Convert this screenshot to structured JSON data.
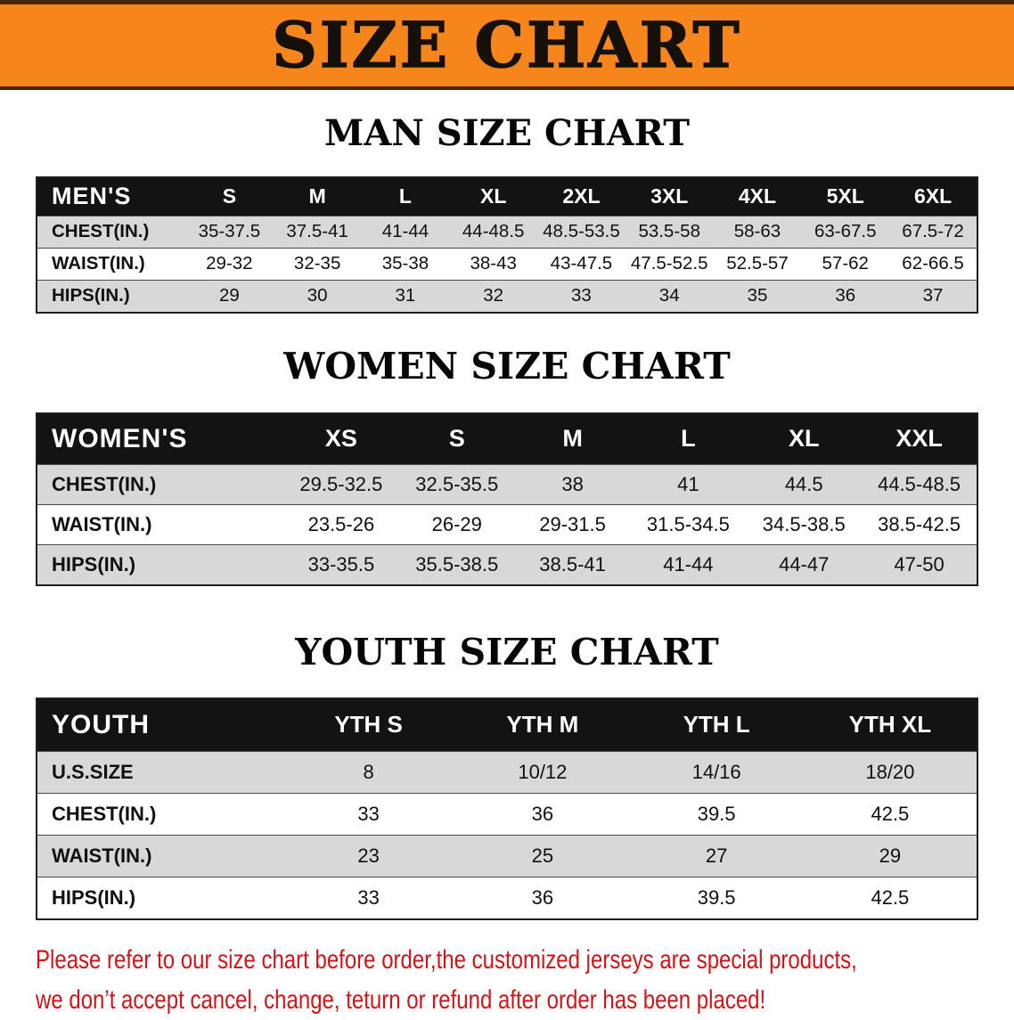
{
  "banner": {
    "title": "SIZE CHART"
  },
  "chart_data": [
    {
      "type": "table",
      "title": "MAN SIZE CHART",
      "columns": [
        "MEN'S",
        "S",
        "M",
        "L",
        "XL",
        "2XL",
        "3XL",
        "4XL",
        "5XL",
        "6XL"
      ],
      "rows": [
        [
          "CHEST(IN.)",
          "35-37.5",
          "37.5-41",
          "41-44",
          "44-48.5",
          "48.5-53.5",
          "53.5-58",
          "58-63",
          "63-67.5",
          "67.5-72"
        ],
        [
          "WAIST(IN.)",
          "29-32",
          "32-35",
          "35-38",
          "38-43",
          "43-47.5",
          "47.5-52.5",
          "52.5-57",
          "57-62",
          "62-66.5"
        ],
        [
          "HIPS(IN.)",
          "29",
          "30",
          "31",
          "32",
          "33",
          "34",
          "35",
          "36",
          "37"
        ]
      ]
    },
    {
      "type": "table",
      "title": "WOMEN SIZE CHART",
      "columns": [
        "WOMEN'S",
        "XS",
        "S",
        "M",
        "L",
        "XL",
        "XXL"
      ],
      "rows": [
        [
          "CHEST(IN.)",
          "29.5-32.5",
          "32.5-35.5",
          "38",
          "41",
          "44.5",
          "44.5-48.5"
        ],
        [
          "WAIST(IN.)",
          "23.5-26",
          "26-29",
          "29-31.5",
          "31.5-34.5",
          "34.5-38.5",
          "38.5-42.5"
        ],
        [
          "HIPS(IN.)",
          "33-35.5",
          "35.5-38.5",
          "38.5-41",
          "41-44",
          "44-47",
          "47-50"
        ]
      ]
    },
    {
      "type": "table",
      "title": "YOUTH SIZE CHART",
      "columns": [
        "YOUTH",
        "YTH S",
        "YTH M",
        "YTH L",
        "YTH XL"
      ],
      "rows": [
        [
          "U.S.SIZE",
          "8",
          "10/12",
          "14/16",
          "18/20"
        ],
        [
          "CHEST(IN.)",
          "33",
          "36",
          "39.5",
          "42.5"
        ],
        [
          "WAIST(IN.)",
          "23",
          "25",
          "27",
          "29"
        ],
        [
          "HIPS(IN.)",
          "33",
          "36",
          "39.5",
          "42.5"
        ]
      ]
    }
  ],
  "footer": {
    "line1": "Please refer to our size chart before order,the customized jerseys are special products,",
    "line2": "we don’t accept cancel, change, teturn or refund after order has been placed!"
  },
  "colors": {
    "banner_bg": "#f6861c",
    "banner_edge": "#42250a",
    "title_color": "#16100a",
    "header_bg": "#131313",
    "header_text": "#ffffff",
    "row_shade": "#d8d8d8",
    "table_border": "#1e1e1e",
    "footer_red": "#d11417"
  }
}
